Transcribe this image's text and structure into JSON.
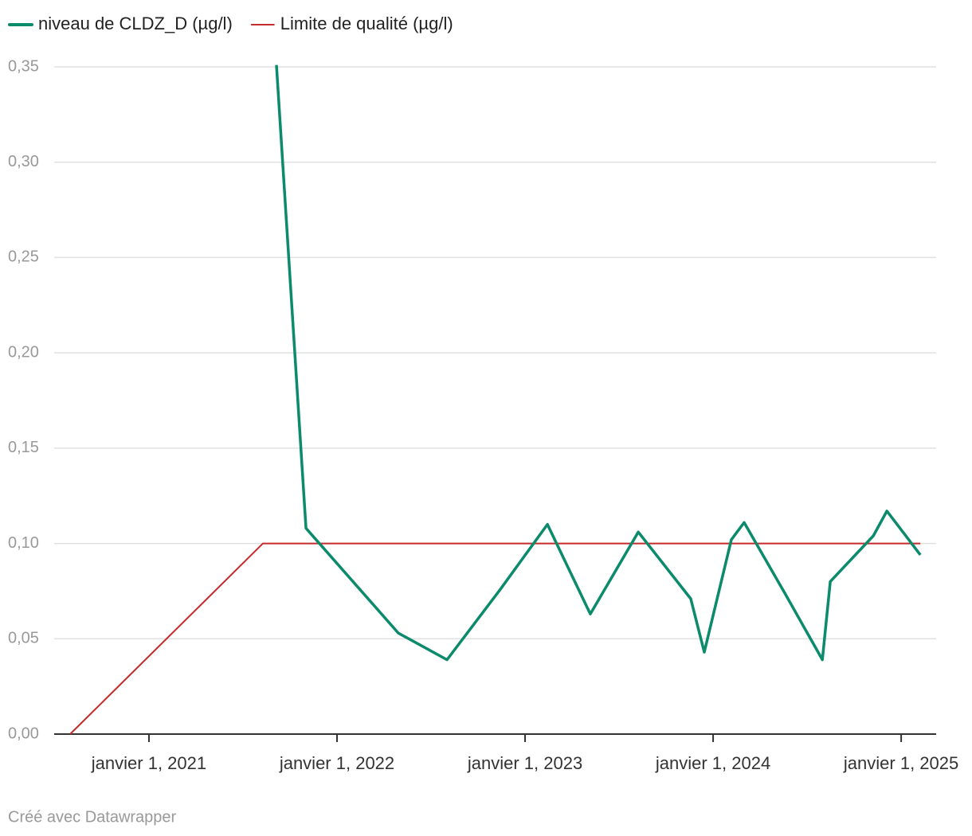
{
  "chart_data": {
    "type": "line",
    "series": [
      {
        "name": "niveau de CLDZ_D (µg/l)",
        "color": "#0b8a6c",
        "x": [
          2021.678,
          2021.835,
          2022.326,
          2022.585,
          2022.869,
          2023.119,
          2023.347,
          2023.602,
          2023.881,
          2023.953,
          2024.097,
          2024.165,
          2024.381,
          2024.581,
          2024.623,
          2024.852,
          2024.924,
          2025.102
        ],
        "values": [
          0.351,
          0.108,
          0.053,
          0.039,
          0.076,
          0.11,
          0.063,
          0.106,
          0.071,
          0.043,
          0.102,
          0.111,
          0.074,
          0.039,
          0.08,
          0.104,
          0.117,
          0.094
        ]
      },
      {
        "name": "Limite de qualité (µg/l)",
        "color": "#c42b2b",
        "x": [
          2020.581,
          2021.606,
          2025.102
        ],
        "values": [
          0,
          0.1,
          0.1
        ]
      }
    ],
    "xlim": [
      2020.496,
      2025.186
    ],
    "xticks": [
      {
        "value": 2021,
        "label": "janvier 1, 2021"
      },
      {
        "value": 2022,
        "label": "janvier 1, 2022"
      },
      {
        "value": 2023,
        "label": "janvier 1, 2023"
      },
      {
        "value": 2024,
        "label": "janvier 1, 2024"
      },
      {
        "value": 2025,
        "label": "janvier 1, 2025"
      }
    ],
    "ylim": [
      0,
      0.35
    ],
    "yticks": [
      {
        "value": 0,
        "label": "0,00"
      },
      {
        "value": 0.05,
        "label": "0,05"
      },
      {
        "value": 0.1,
        "label": "0,10"
      },
      {
        "value": 0.15,
        "label": "0,15"
      },
      {
        "value": 0.2,
        "label": "0,20"
      },
      {
        "value": 0.25,
        "label": "0,25"
      },
      {
        "value": 0.3,
        "label": "0,30"
      },
      {
        "value": 0.35,
        "label": "0,35"
      }
    ],
    "grid": true,
    "credit": "Créé avec Datawrapper"
  }
}
